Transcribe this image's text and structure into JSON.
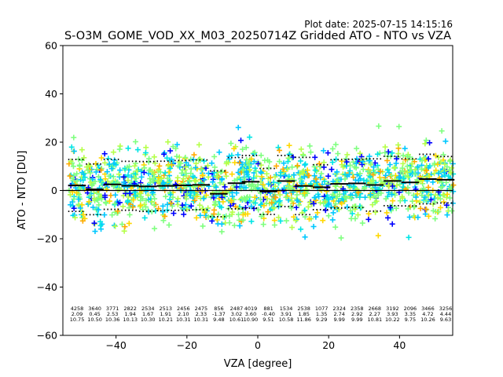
{
  "chart_data": {
    "type": "scatter",
    "plot_date": "Plot date: 2025-07-15 14:15:16",
    "title": "S-O3M_GOME_VOD_XX_M03_20250714Z Gridded ATO - NTO vs VZA",
    "xlabel": "VZA [degree]",
    "ylabel": "ATO - NTO [DU]",
    "xlim": [
      -55,
      55
    ],
    "ylim": [
      -60,
      60
    ],
    "xticks": [
      -40,
      -20,
      0,
      20,
      40
    ],
    "yticks": [
      -60,
      -40,
      -20,
      0,
      20,
      40,
      60
    ],
    "grid": false,
    "legend": "none",
    "marker": "+",
    "point_colors": [
      "#0000ff",
      "#00c8ff",
      "#00e5e5",
      "#7fff7f",
      "#b5ff49",
      "#ffd700",
      "#ffaa00"
    ],
    "zero_line": 0,
    "bins": [
      {
        "x": -51,
        "count": "4258",
        "mean": "2.09",
        "std": "10.75"
      },
      {
        "x": -46,
        "count": "3640",
        "mean": "0.45",
        "std": "10.50"
      },
      {
        "x": -41,
        "count": "3771",
        "mean": "2.53",
        "std": "10.36"
      },
      {
        "x": -36,
        "count": "2822",
        "mean": "1.94",
        "std": "10.13"
      },
      {
        "x": -31,
        "count": "2534",
        "mean": "1.67",
        "std": "10.30"
      },
      {
        "x": -26,
        "count": "2513",
        "mean": "1.91",
        "std": "10.21"
      },
      {
        "x": -21,
        "count": "2456",
        "mean": "2.10",
        "std": "10.31"
      },
      {
        "x": -16,
        "count": "2475",
        "mean": "2.33",
        "std": "10.31"
      },
      {
        "x": -11,
        "count": "856",
        "mean": "-1.37",
        "std": "9.48"
      },
      {
        "x": -6,
        "count": "2487",
        "mean": "3.02",
        "std": "10.61"
      },
      {
        "x": -2,
        "count": "4019",
        "mean": "3.60",
        "std": "10.90"
      },
      {
        "x": 3,
        "count": "881",
        "mean": "-0.40",
        "std": "9.51"
      },
      {
        "x": 8,
        "count": "1534",
        "mean": "3.91",
        "std": "10.58"
      },
      {
        "x": 13,
        "count": "2538",
        "mean": "1.85",
        "std": "11.86"
      },
      {
        "x": 18,
        "count": "1077",
        "mean": "1.35",
        "std": "9.29"
      },
      {
        "x": 23,
        "count": "2324",
        "mean": "2.74",
        "std": "9.99"
      },
      {
        "x": 28,
        "count": "2358",
        "mean": "2.92",
        "std": "9.99"
      },
      {
        "x": 33,
        "count": "2668",
        "mean": "2.27",
        "std": "10.81"
      },
      {
        "x": 38,
        "count": "3192",
        "mean": "3.93",
        "std": "10.22"
      },
      {
        "x": 43,
        "count": "2096",
        "mean": "3.35",
        "std": "9.75"
      },
      {
        "x": 48,
        "count": "3466",
        "mean": "4.72",
        "std": "10.26"
      },
      {
        "x": 53,
        "count": "3256",
        "mean": "4.44",
        "std": "9.63"
      }
    ]
  }
}
